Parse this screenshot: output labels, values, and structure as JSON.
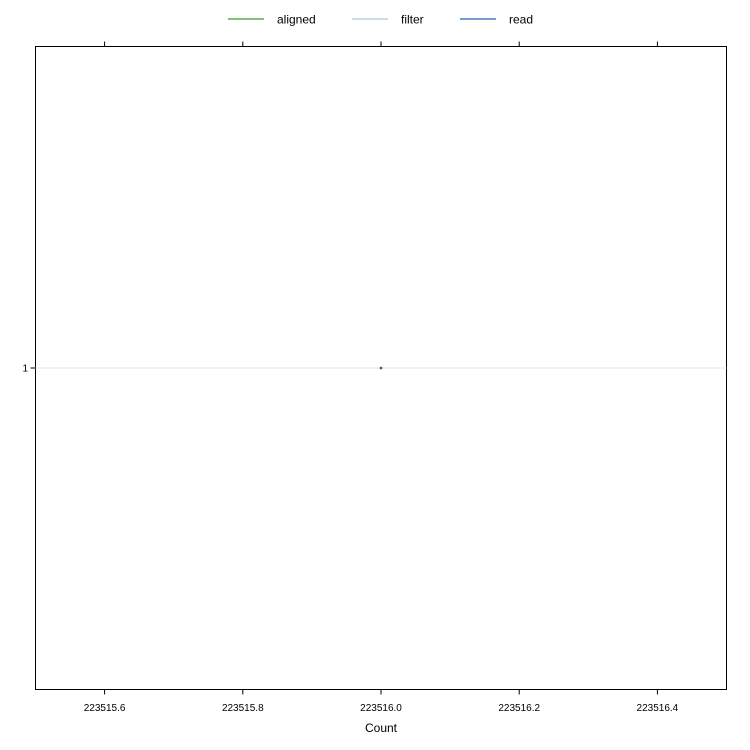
{
  "chart_data": {
    "type": "scatter",
    "xlabel": "Count",
    "ylabel": "",
    "xlim": [
      223515.5,
      223516.5
    ],
    "x_ticks": [
      "223515.6",
      "223515.8",
      "223516.0",
      "223516.2",
      "223516.4"
    ],
    "x_tick_values": [
      223515.6,
      223515.8,
      223516.0,
      223516.2,
      223516.4
    ],
    "y_categories": [
      "1"
    ],
    "grid": false,
    "legend_position": "top",
    "series": [
      {
        "name": "aligned",
        "color": "#3a9a2a",
        "points": [
          {
            "x": 223516.0,
            "y": "1"
          }
        ]
      },
      {
        "name": "filter",
        "color": "#a6c8e0",
        "points": [
          {
            "x": 223516.0,
            "y": "1"
          }
        ]
      },
      {
        "name": "read",
        "color": "#2166ac",
        "points": [
          {
            "x": 223516.0,
            "y": "1"
          }
        ]
      }
    ]
  }
}
